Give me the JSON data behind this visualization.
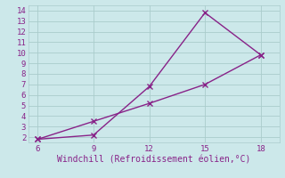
{
  "xlabel": "Windchill (Refroidissement éolien,°C)",
  "line1_x": [
    6,
    9,
    12,
    15,
    18
  ],
  "line1_y": [
    1.8,
    2.2,
    6.8,
    13.8,
    9.8
  ],
  "line2_x": [
    6,
    9,
    12,
    15,
    18
  ],
  "line2_y": [
    1.8,
    3.5,
    5.2,
    7.0,
    9.8
  ],
  "line_color": "#882288",
  "bg_color": "#cce8ea",
  "grid_color": "#aacccc",
  "tick_color": "#882288",
  "label_color": "#882288",
  "xlim": [
    5.5,
    19.0
  ],
  "ylim": [
    1.5,
    14.5
  ],
  "xticks": [
    6,
    9,
    12,
    15,
    18
  ],
  "yticks": [
    2,
    3,
    4,
    5,
    6,
    7,
    8,
    9,
    10,
    11,
    12,
    13,
    14
  ],
  "marker": "x",
  "marker_size": 4,
  "line_width": 1.0
}
